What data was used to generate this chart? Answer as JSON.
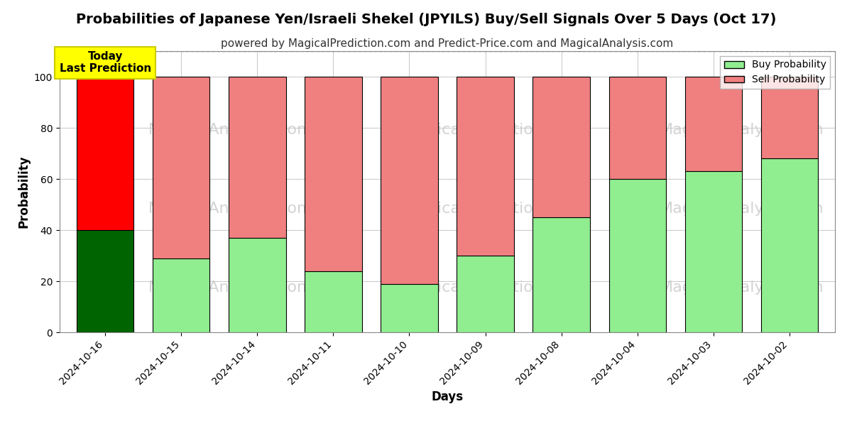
{
  "title": "Probabilities of Japanese Yen/Israeli Shekel (JPYILS) Buy/Sell Signals Over 5 Days (Oct 17)",
  "subtitle": "powered by MagicalPrediction.com and Predict-Price.com and MagicalAnalysis.com",
  "xlabel": "Days",
  "ylabel": "Probability",
  "categories": [
    "2024-10-16",
    "2024-10-15",
    "2024-10-14",
    "2024-10-11",
    "2024-10-10",
    "2024-10-09",
    "2024-10-08",
    "2024-10-04",
    "2024-10-03",
    "2024-10-02"
  ],
  "buy_values": [
    40,
    29,
    37,
    24,
    19,
    30,
    45,
    60,
    63,
    68
  ],
  "sell_values": [
    60,
    71,
    63,
    76,
    81,
    70,
    55,
    40,
    37,
    32
  ],
  "today_buy_color": "#006400",
  "today_sell_color": "#ff0000",
  "buy_color": "#90EE90",
  "sell_color": "#F08080",
  "buy_edge_color": "#000000",
  "sell_edge_color": "#000000",
  "ylim": [
    0,
    110
  ],
  "yticks": [
    0,
    20,
    40,
    60,
    80,
    100
  ],
  "dashed_line_y": 110,
  "watermark_color": "#cccccc",
  "annotation_text": "Today\nLast Prediction",
  "annotation_bg_color": "#ffff00",
  "annotation_edge_color": "#cccc00",
  "legend_buy_label": "Buy Probability",
  "legend_sell_label": "Sell Probability",
  "grid_color": "#cccccc",
  "background_color": "#ffffff",
  "title_fontsize": 14,
  "subtitle_fontsize": 11,
  "bar_width": 0.75
}
